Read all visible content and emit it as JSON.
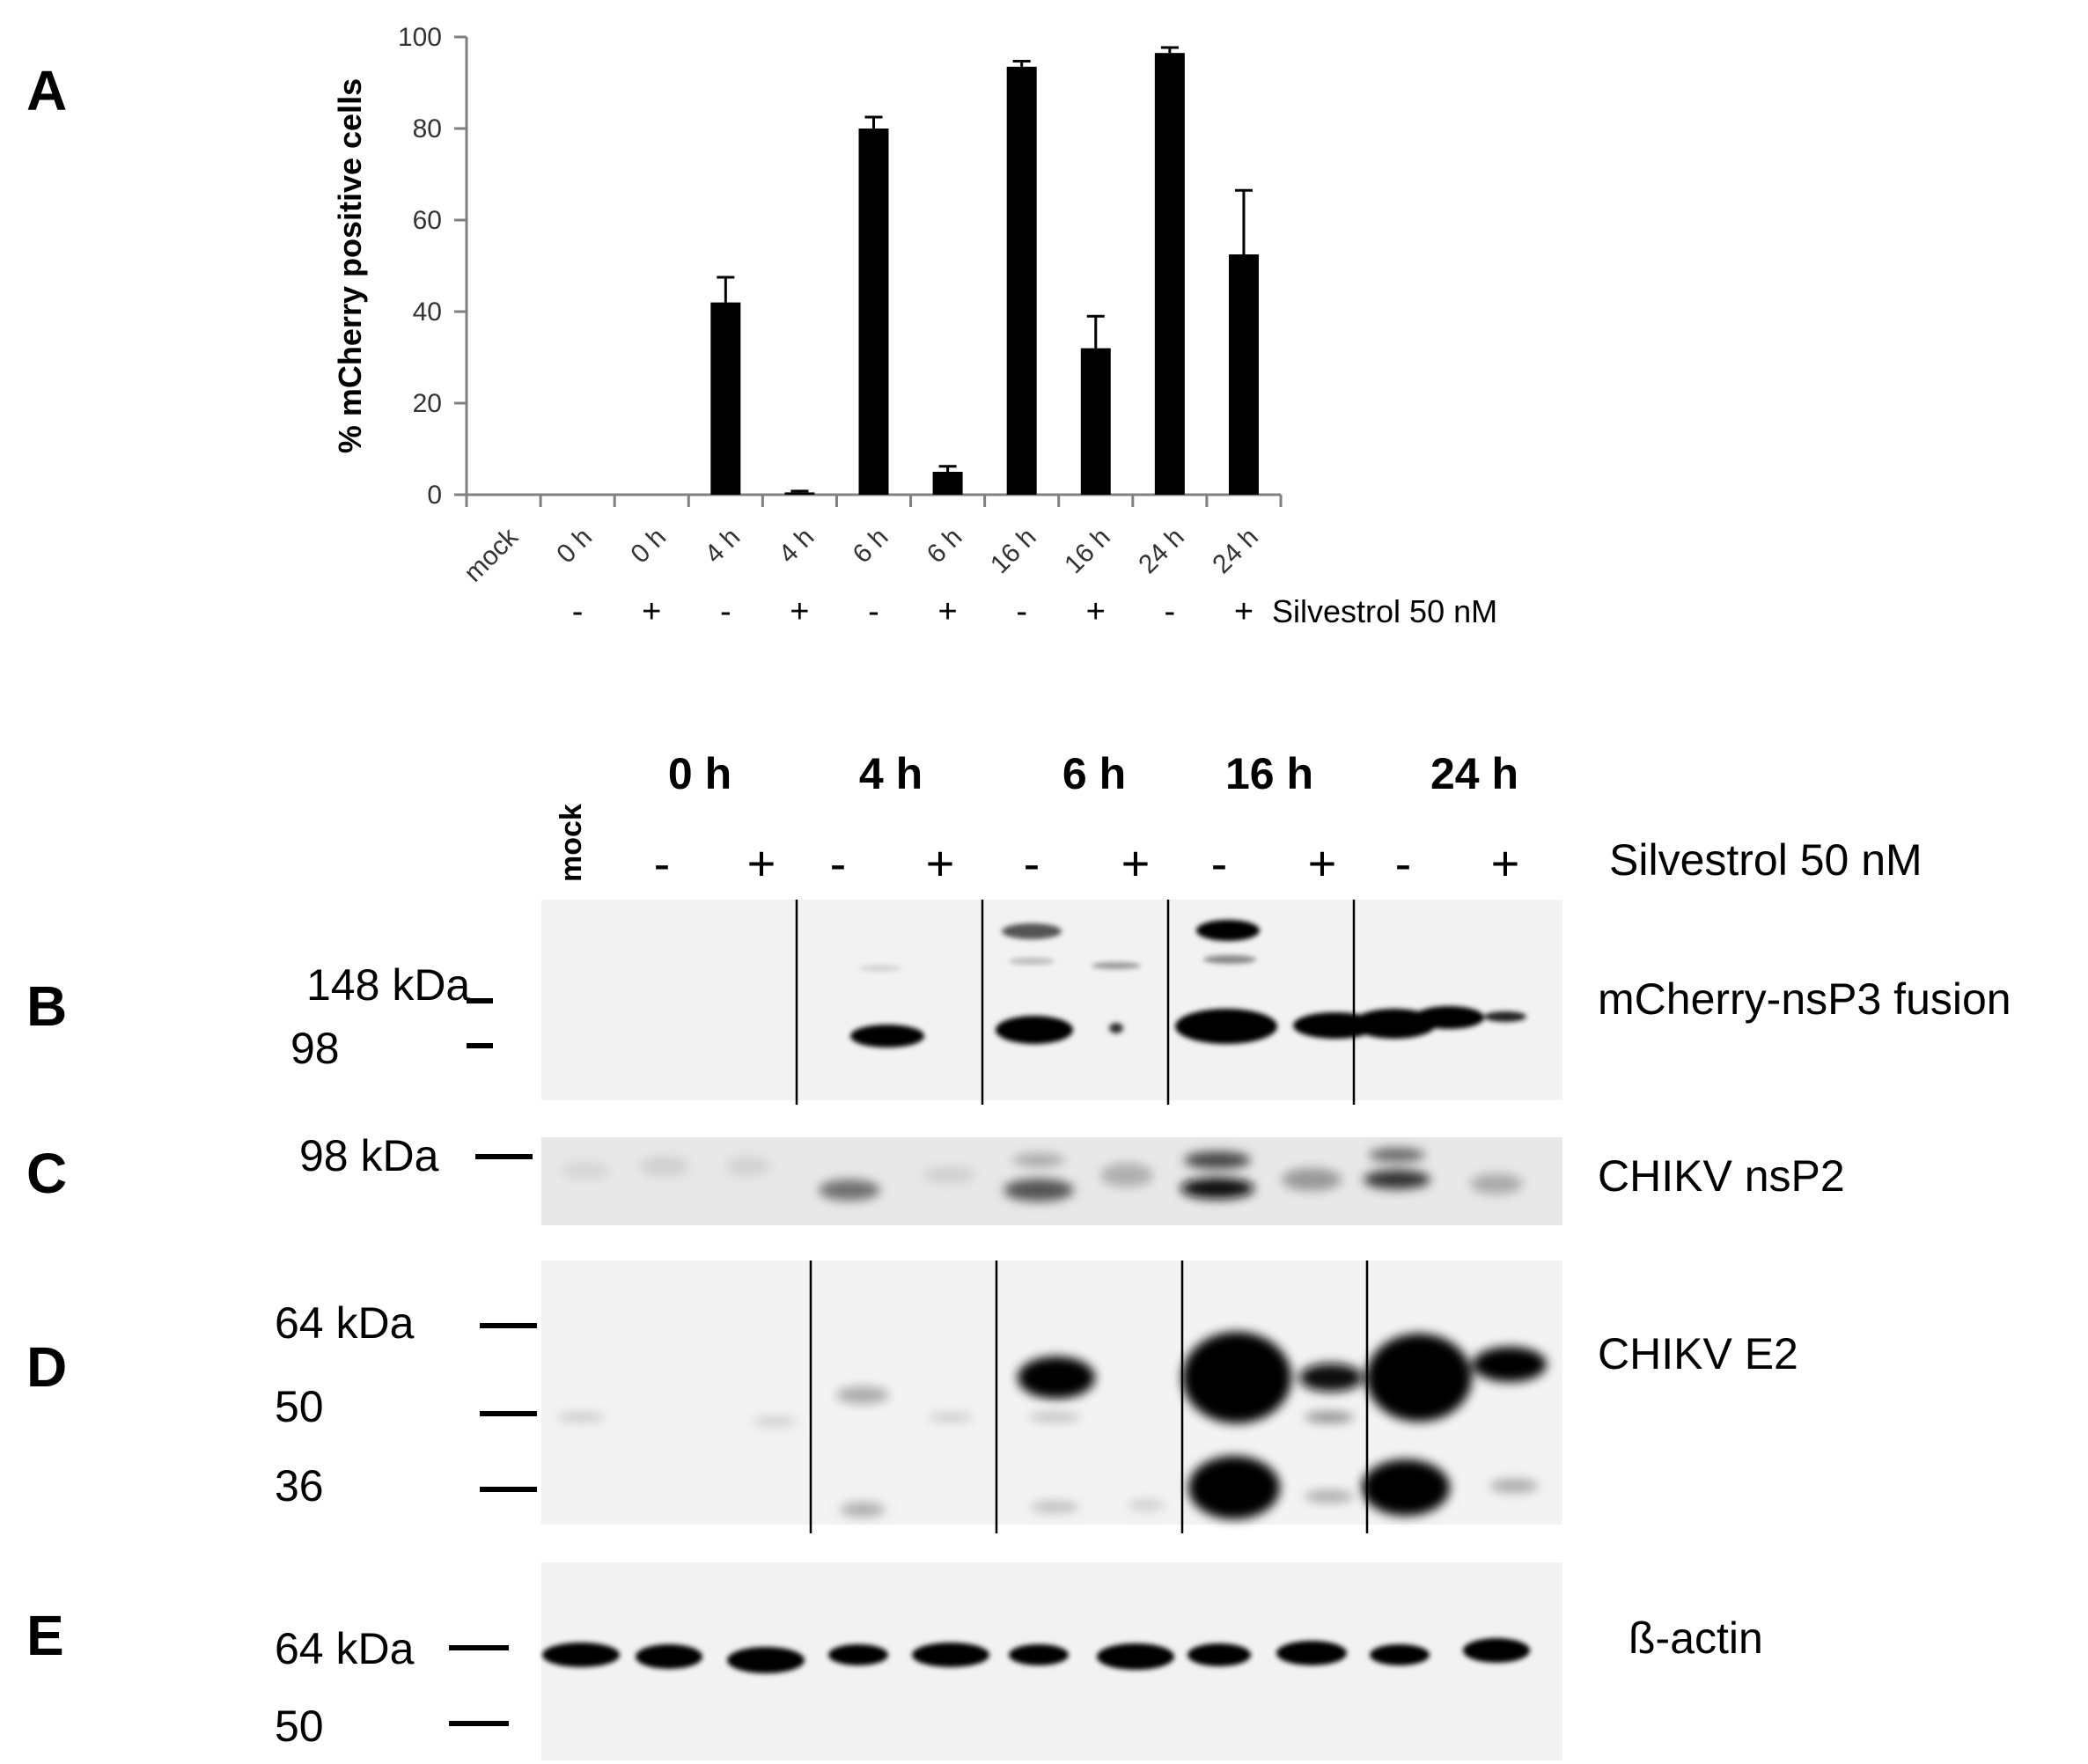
{
  "panel_labels": [
    "A",
    "B",
    "C",
    "D",
    "E"
  ],
  "chart_data": {
    "type": "bar",
    "title": "",
    "xlabel": "",
    "ylabel": "% mCherry positive cells",
    "ylim": [
      0,
      100
    ],
    "yticks": [
      0,
      20,
      40,
      60,
      80,
      100
    ],
    "categories": [
      "mock",
      "0 h",
      "0 h",
      "4 h",
      "4 h",
      "6 h",
      "6 h",
      "16 h",
      "16 h",
      "24 h",
      "24 h"
    ],
    "treatment_row": [
      "",
      "-",
      "+",
      "-",
      "+",
      "-",
      "+",
      "-",
      "+",
      "-",
      "+"
    ],
    "treatment_label": "Silvestrol 50 nM",
    "values": [
      0,
      0,
      0,
      42,
      0.5,
      80,
      5,
      93.5,
      32,
      96.5,
      52.5
    ],
    "errors": [
      0,
      0,
      0,
      5.5,
      0.3,
      2.5,
      1.2,
      1.2,
      7,
      1.2,
      14
    ],
    "bar_color": "#000000",
    "grid": false,
    "legend": "none"
  },
  "blot": {
    "time_headers": [
      "0 h",
      "4 h",
      "6 h",
      "16 h",
      "24 h"
    ],
    "mock_label": "mock",
    "signs": [
      "-",
      "+",
      "-",
      "+",
      "-",
      "+",
      "-",
      "+",
      "-",
      "+"
    ],
    "treatment_label": "Silvestrol 50 nM",
    "panels": [
      {
        "label": "B",
        "antibody": "mCherry-nsP3 fusion",
        "markers": [
          "148 kDa",
          "98"
        ]
      },
      {
        "label": "C",
        "antibody": "CHIKV nsP2",
        "markers": [
          "98 kDa"
        ]
      },
      {
        "label": "D",
        "antibody": "CHIKV E2",
        "markers": [
          "64 kDa",
          "50",
          "36"
        ]
      },
      {
        "label": "E",
        "antibody": "ß-actin",
        "markers": [
          "64 kDa",
          "50"
        ]
      }
    ]
  }
}
